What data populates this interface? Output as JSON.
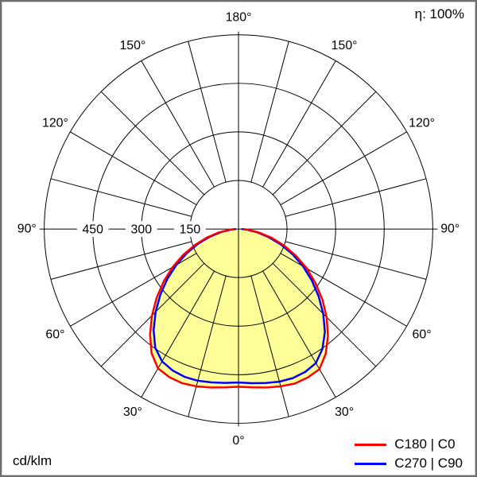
{
  "meta": {
    "efficiency": "η: 100%",
    "unit": "cd/klm"
  },
  "legend": {
    "items": [
      {
        "label": "C180 | C0",
        "color": "#ff0000"
      },
      {
        "label": "C270 | C90",
        "color": "#0000ff"
      }
    ]
  },
  "chart_data": {
    "type": "polar",
    "subtype": "luminous-intensity-distribution",
    "unit": "cd/klm",
    "efficiency_label": "η: 100%",
    "r_axis_max": 600,
    "ring_values": [
      150,
      300,
      450,
      600
    ],
    "ring_label_values": [
      150,
      300,
      450
    ],
    "angle_labels_deg": [
      0,
      30,
      60,
      90,
      120,
      150,
      180
    ],
    "radial_step_deg": 15,
    "fill_color": "#ffff99",
    "grid_color": "#000000",
    "gamma_deg": [
      -90,
      -85,
      -80,
      -75,
      -70,
      -65,
      -60,
      -55,
      -50,
      -45,
      -40,
      -35,
      -30,
      -25,
      -20,
      -15,
      -10,
      -5,
      0,
      5,
      10,
      15,
      20,
      25,
      30,
      35,
      40,
      45,
      50,
      55,
      60,
      65,
      70,
      75,
      80,
      85,
      90
    ],
    "series": [
      {
        "name": "C180 | C0",
        "color": "#ff0000",
        "values": [
          12,
          30,
          62,
          100,
          142,
          188,
          235,
          282,
          330,
          378,
          425,
          468,
          497,
          505,
          507,
          503,
          497,
          491,
          487,
          491,
          497,
          503,
          508,
          506,
          500,
          470,
          430,
          385,
          338,
          290,
          244,
          196,
          150,
          106,
          66,
          32,
          14
        ]
      },
      {
        "name": "C270 | C90",
        "color": "#0000ff",
        "values": [
          8,
          24,
          54,
          92,
          132,
          176,
          222,
          268,
          315,
          362,
          408,
          448,
          472,
          482,
          486,
          485,
          481,
          477,
          474,
          478,
          483,
          488,
          490,
          487,
          478,
          452,
          415,
          370,
          323,
          276,
          230,
          184,
          138,
          96,
          58,
          26,
          9
        ]
      }
    ]
  }
}
